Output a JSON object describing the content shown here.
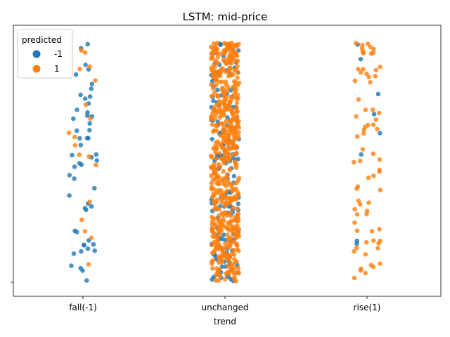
{
  "chart_data": {
    "type": "scatter",
    "subtype": "strip",
    "title": "LSTM: mid-price",
    "xlabel": "trend",
    "ylabel": "",
    "categories": [
      "fall(-1)",
      "unchanged",
      "rise(1)"
    ],
    "y_tick_labels": [
      ""
    ],
    "legend": {
      "title": "predicted",
      "placement": "top-left",
      "entries": [
        {
          "label": "-1",
          "color": "#1f77b4"
        },
        {
          "label": "1",
          "color": "#ff7f0e"
        }
      ]
    },
    "series": [
      {
        "name": "-1",
        "color": "#1f77b4",
        "counts": [
          52,
          170,
          8
        ]
      },
      {
        "name": "1",
        "color": "#ff7f0e",
        "counts": [
          18,
          560,
          72
        ]
      }
    ],
    "grid": false
  }
}
